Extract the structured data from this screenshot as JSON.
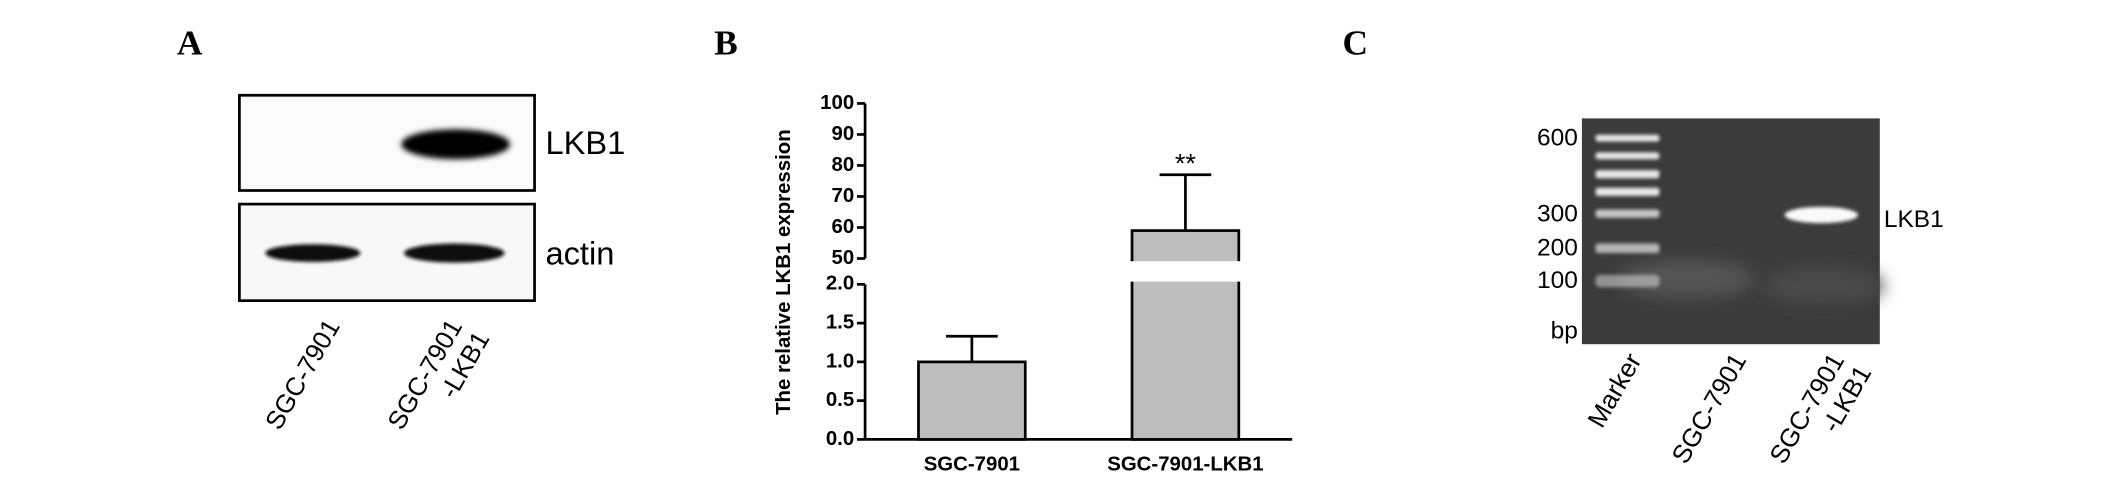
{
  "panels": {
    "A": {
      "letter": "A",
      "blot_labels": [
        "LKB1",
        "actin"
      ],
      "lane_labels": [
        [
          "SGC-7901"
        ],
        [
          "SGC-7901",
          "-LKB1"
        ]
      ]
    },
    "B": {
      "letter": "B"
    },
    "C": {
      "letter": "C",
      "size_labels": [
        600,
        300,
        200,
        100
      ],
      "unit_label": "bp",
      "band_label": "LKB1",
      "lane_labels": [
        [
          "Marker"
        ],
        [
          "SGC-7901"
        ],
        [
          "SGC-7901",
          "-LKB1"
        ]
      ]
    }
  },
  "chart_data": {
    "type": "bar",
    "ylabel": "The relative LKB1  expression",
    "categories": [
      "SGC-7901",
      "SGC-7901-LKB1"
    ],
    "values": [
      1.0,
      59
    ],
    "errors": [
      0.33,
      18
    ],
    "annotations": [
      null,
      "**"
    ],
    "color": "#bdbdbd",
    "ylim": [
      0,
      100
    ],
    "ybreak": [
      2,
      50
    ],
    "yticks": [
      {
        "value": 0,
        "label": "0.0"
      },
      0.5,
      {
        "value": 1,
        "label": "1.0"
      },
      1.5,
      {
        "value": 2,
        "label": "2.0"
      },
      50,
      60,
      70,
      80,
      90,
      100
    ],
    "grid": false
  }
}
